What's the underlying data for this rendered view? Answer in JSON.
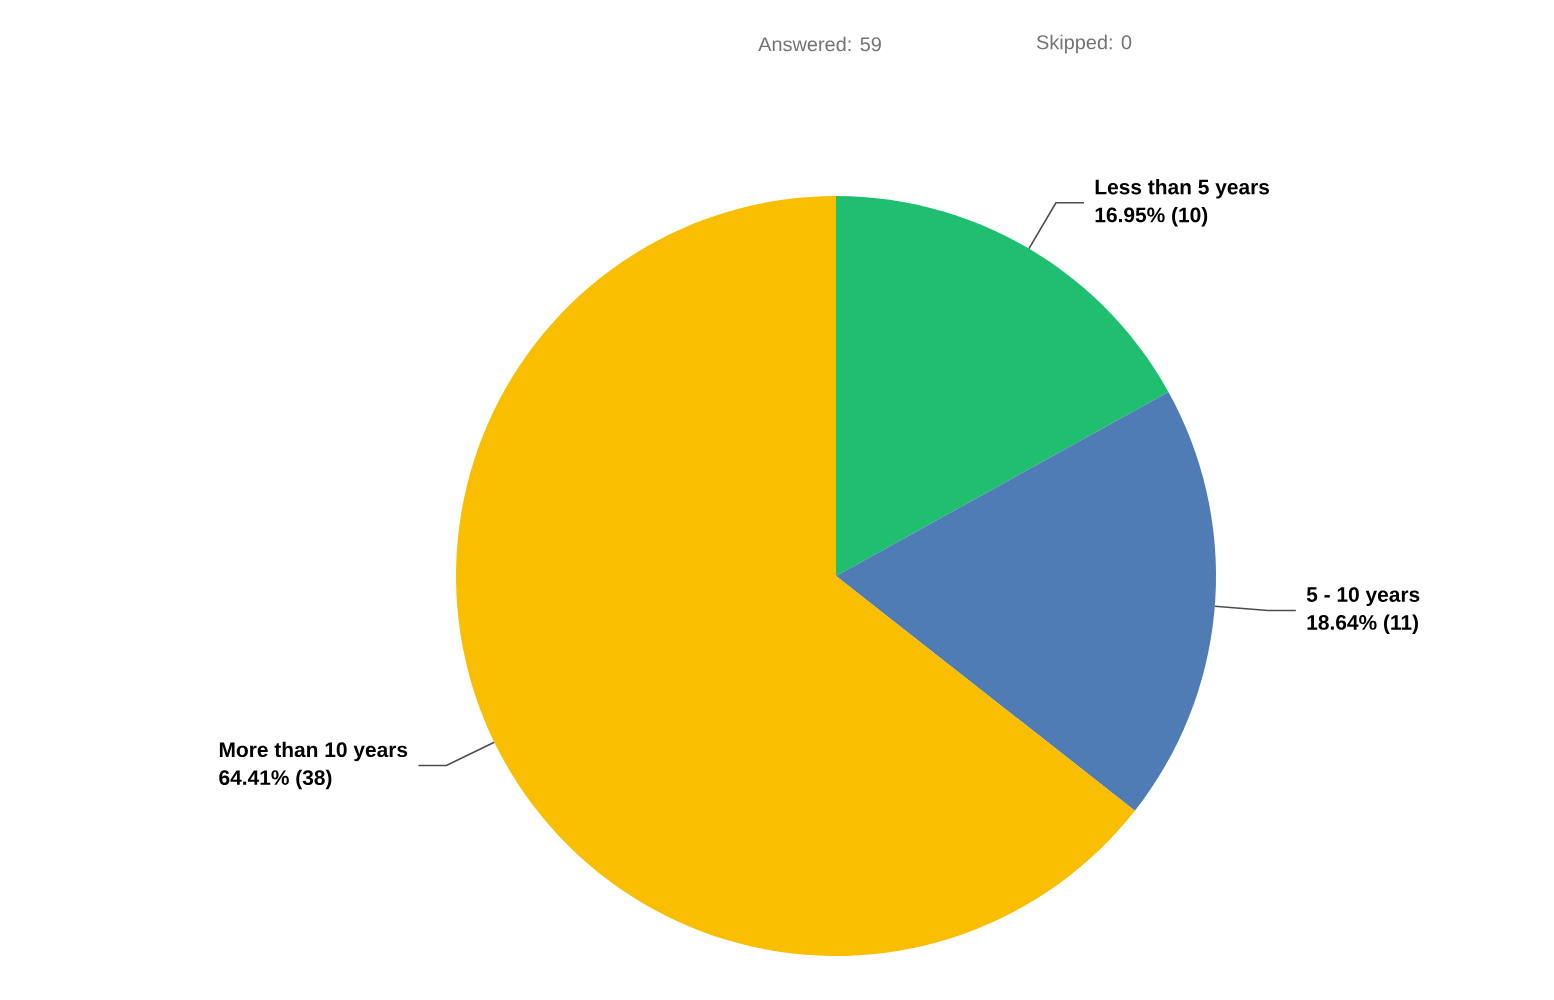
{
  "chart_data": {
    "type": "pie",
    "annotations": [
      "Answered: 59",
      "Skipped: 0"
    ],
    "categories": [
      "Less than 5 years",
      "5 - 10 years",
      "More than 10 years"
    ],
    "values": [
      10,
      11,
      38
    ],
    "value_labels": [
      "16.95% (10)",
      "18.64% (11)",
      "64.41% (38)"
    ],
    "colors": [
      "#1fbf6f",
      "#507cb6",
      "#f9be00"
    ]
  }
}
